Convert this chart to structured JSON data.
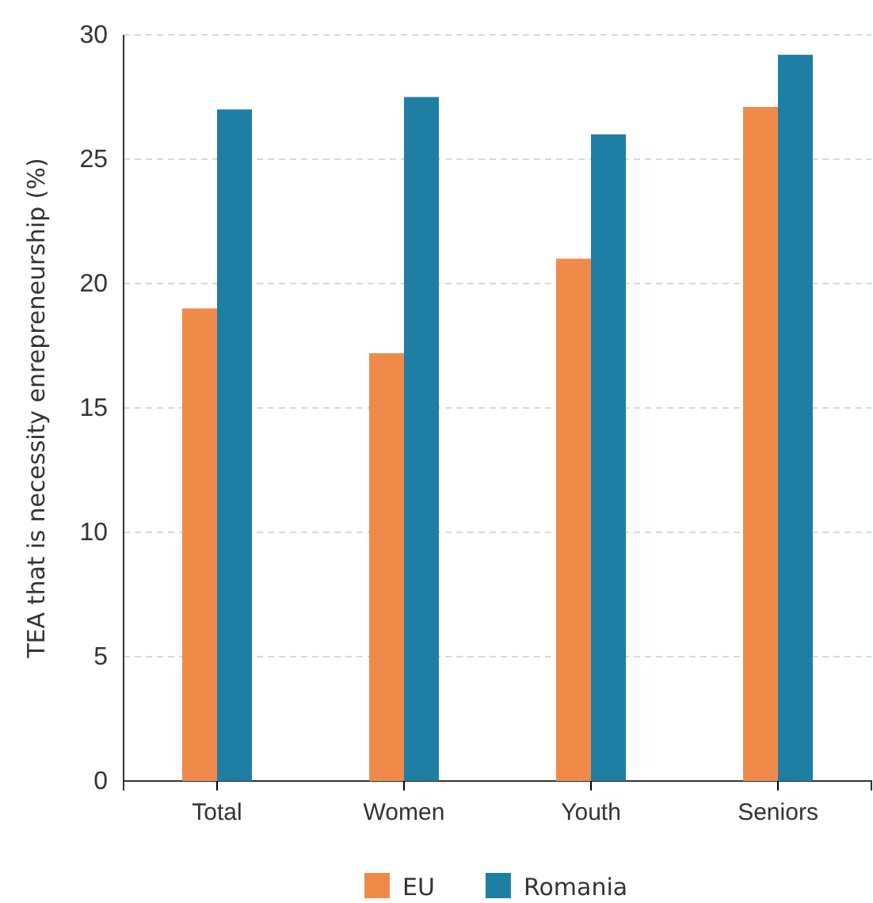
{
  "chart_data": {
    "type": "bar",
    "ylabel": "TEA that is necessity enrepreneurship (%)",
    "categories": [
      "Total",
      "Women",
      "Youth",
      "Seniors"
    ],
    "series": [
      {
        "name": "EU",
        "color": "#f08a4b",
        "values": [
          19,
          17.2,
          21,
          27.1
        ]
      },
      {
        "name": "Romania",
        "color": "#1f7ea3",
        "values": [
          27,
          27.5,
          26,
          29.2
        ]
      }
    ],
    "ylim": [
      0,
      30
    ],
    "yticks": [
      0,
      5,
      10,
      15,
      20,
      25,
      30
    ],
    "grid": "y",
    "legend": "bottom"
  }
}
